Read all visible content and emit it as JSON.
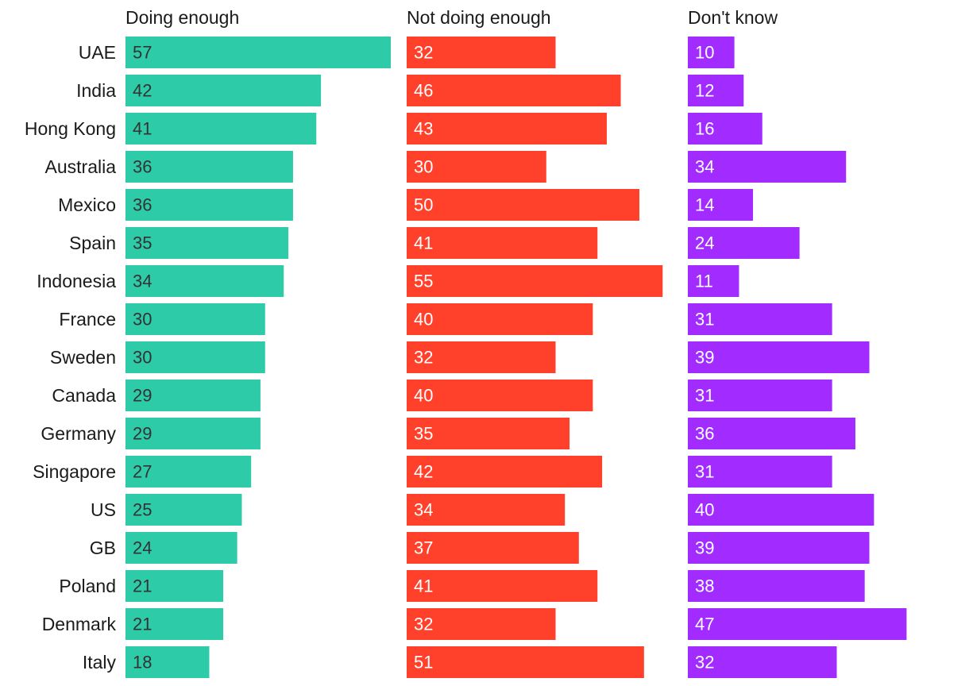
{
  "chart_data": {
    "type": "bar",
    "orientation": "horizontal",
    "layout": "small-multiples",
    "categories": [
      "UAE",
      "India",
      "Hong Kong",
      "Australia",
      "Mexico",
      "Spain",
      "Indonesia",
      "France",
      "Sweden",
      "Canada",
      "Germany",
      "Singapore",
      "US",
      "GB",
      "Poland",
      "Denmark",
      "Italy"
    ],
    "series": [
      {
        "name": "Doing enough",
        "color": "#2ecba8",
        "label_color": "#333333",
        "values": [
          57,
          42,
          41,
          36,
          36,
          35,
          34,
          30,
          30,
          29,
          29,
          27,
          25,
          24,
          21,
          21,
          18
        ]
      },
      {
        "name": "Not doing enough",
        "color": "#ff412c",
        "label_color": "#ffffff",
        "values": [
          32,
          46,
          43,
          30,
          50,
          41,
          55,
          40,
          32,
          40,
          35,
          42,
          34,
          37,
          41,
          32,
          51
        ]
      },
      {
        "name": "Don't know",
        "color": "#a22bff",
        "label_color": "#ffffff",
        "values": [
          10,
          12,
          16,
          34,
          14,
          24,
          11,
          31,
          39,
          31,
          36,
          31,
          40,
          39,
          38,
          47,
          32
        ]
      }
    ],
    "title": "",
    "xlabel": "",
    "ylabel": "",
    "xlim": [
      0,
      57
    ],
    "grid": false,
    "legend": "none"
  }
}
